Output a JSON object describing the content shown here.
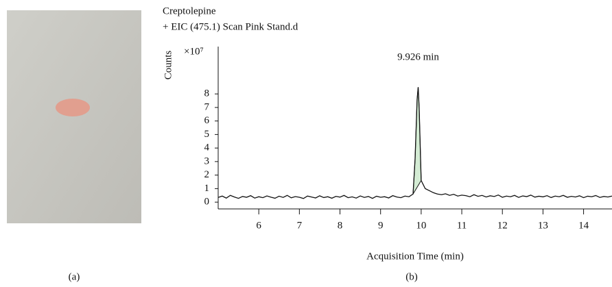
{
  "panel_labels": [
    "(a)",
    "(b)"
  ],
  "chart_data": {
    "type": "line",
    "title": "Creptolepine",
    "subtitle": "+ EIC (475.1) Scan Pink Stand.d",
    "y_label": "Counts",
    "y_multiplier": "×10⁷",
    "x_label": "Acquisition Time (min)",
    "annotation": "9.926 min",
    "annotation_x": 9.926,
    "xlim": [
      5.0,
      14.7
    ],
    "xticks": [
      6,
      7,
      8,
      9,
      10,
      11,
      12,
      13,
      14
    ],
    "ylim": [
      -0.5,
      11.5
    ],
    "yticks": [
      0,
      1,
      2,
      3,
      4,
      5,
      6,
      7,
      8
    ],
    "fill_color": "#d4ecd4",
    "series": [
      {
        "color": "#111111",
        "x": [
          5.0,
          5.1,
          5.2,
          5.3,
          5.4,
          5.5,
          5.6,
          5.7,
          5.8,
          5.9,
          6.0,
          6.1,
          6.2,
          6.3,
          6.4,
          6.5,
          6.6,
          6.7,
          6.8,
          6.9,
          7.0,
          7.1,
          7.2,
          7.3,
          7.4,
          7.5,
          7.6,
          7.7,
          7.8,
          7.9,
          8.0,
          8.1,
          8.2,
          8.3,
          8.4,
          8.5,
          8.6,
          8.7,
          8.8,
          8.9,
          9.0,
          9.1,
          9.2,
          9.3,
          9.4,
          9.5,
          9.6,
          9.7,
          9.8,
          9.85,
          9.9,
          9.926,
          9.95,
          10.0,
          10.05,
          10.1,
          10.2,
          10.3,
          10.4,
          10.5,
          10.6,
          10.7,
          10.8,
          10.9,
          11.0,
          11.1,
          11.2,
          11.3,
          11.4,
          11.5,
          11.6,
          11.7,
          11.8,
          11.9,
          12.0,
          12.1,
          12.2,
          12.3,
          12.4,
          12.5,
          12.6,
          12.7,
          12.8,
          12.9,
          13.0,
          13.1,
          13.2,
          13.3,
          13.4,
          13.5,
          13.6,
          13.7,
          13.8,
          13.9,
          14.0,
          14.1,
          14.2,
          14.3,
          14.4,
          14.5,
          14.6,
          14.7
        ],
        "values": [
          0.35,
          0.45,
          0.3,
          0.5,
          0.38,
          0.28,
          0.42,
          0.36,
          0.48,
          0.3,
          0.4,
          0.33,
          0.46,
          0.37,
          0.29,
          0.44,
          0.35,
          0.5,
          0.32,
          0.41,
          0.36,
          0.27,
          0.45,
          0.38,
          0.31,
          0.47,
          0.34,
          0.4,
          0.29,
          0.43,
          0.37,
          0.5,
          0.33,
          0.39,
          0.3,
          0.46,
          0.35,
          0.42,
          0.28,
          0.44,
          0.36,
          0.4,
          0.31,
          0.48,
          0.38,
          0.33,
          0.45,
          0.4,
          0.6,
          3.2,
          7.6,
          8.5,
          7.0,
          1.6,
          1.3,
          1.0,
          0.85,
          0.7,
          0.6,
          0.55,
          0.62,
          0.5,
          0.58,
          0.45,
          0.52,
          0.48,
          0.4,
          0.55,
          0.43,
          0.5,
          0.38,
          0.47,
          0.42,
          0.53,
          0.36,
          0.45,
          0.4,
          0.5,
          0.35,
          0.46,
          0.41,
          0.52,
          0.37,
          0.44,
          0.39,
          0.48,
          0.34,
          0.45,
          0.4,
          0.5,
          0.36,
          0.43,
          0.38,
          0.47,
          0.33,
          0.44,
          0.4,
          0.49,
          0.35,
          0.42,
          0.38,
          0.45
        ]
      }
    ]
  }
}
